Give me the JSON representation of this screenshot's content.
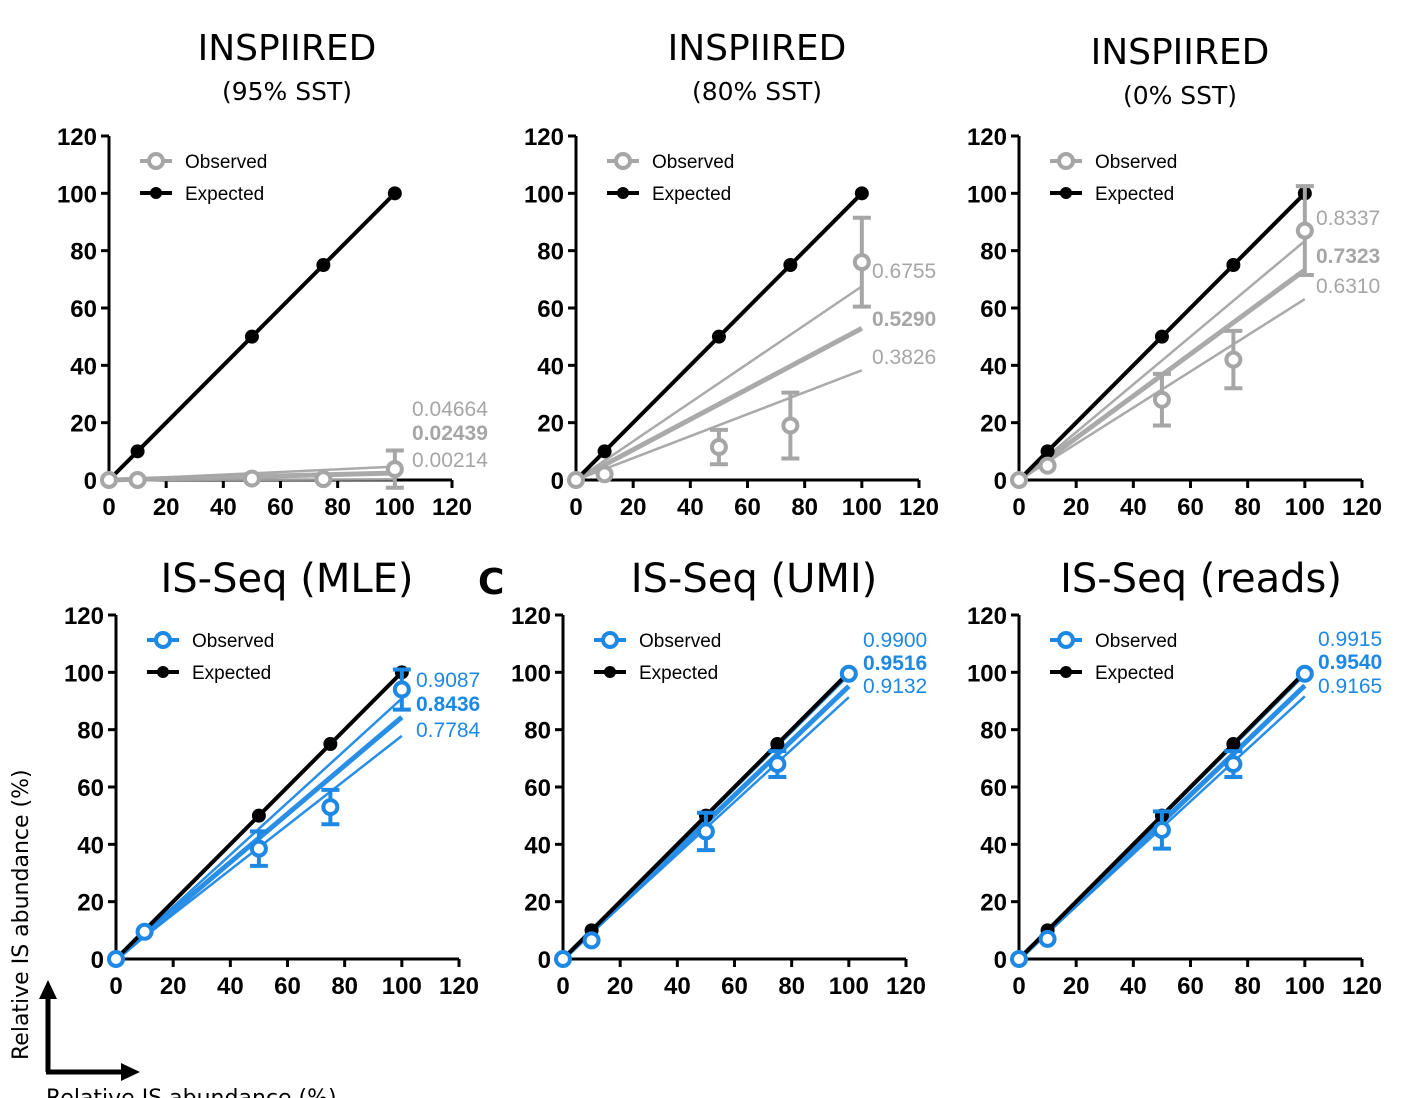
{
  "colors": {
    "expected": "#000000",
    "observed_gray": "#a6a6a6",
    "observed_blue": "#1e88e5"
  },
  "panel_letter": "C",
  "y_axis_caption": "Relative IS abundance (%)",
  "x_axis_caption": "Relative IS abundance (%)",
  "chart_data": [
    {
      "type": "scatter",
      "title": "INSPIIRED",
      "subtitle": "(95% SST)",
      "xlim": [
        0,
        120
      ],
      "ylim": [
        0,
        120
      ],
      "xticks": [
        "0",
        "20",
        "40",
        "60",
        "80",
        "100",
        "120"
      ],
      "yticks": [
        "0",
        "20",
        "40",
        "60",
        "80",
        "100",
        "120"
      ],
      "legend": [
        "Observed",
        "Expected"
      ],
      "observed_color": "#a6a6a6",
      "series": [
        {
          "name": "Expected",
          "x": [
            0,
            10,
            50,
            75,
            100
          ],
          "y": [
            0,
            10,
            50,
            75,
            100
          ]
        },
        {
          "name": "Observed",
          "x": [
            0,
            10,
            50,
            75,
            100
          ],
          "y": [
            0,
            0,
            0.5,
            0.3,
            3.8
          ],
          "err": [
            0,
            0,
            0,
            0,
            6.5
          ]
        }
      ],
      "slopes": [
        "0.04664",
        "0.02439",
        "0.00214"
      ]
    },
    {
      "type": "scatter",
      "title": "INSPIIRED",
      "subtitle": "(80% SST)",
      "xlim": [
        0,
        120
      ],
      "ylim": [
        0,
        120
      ],
      "xticks": [
        "0",
        "20",
        "40",
        "60",
        "80",
        "100",
        "120"
      ],
      "yticks": [
        "0",
        "20",
        "40",
        "60",
        "80",
        "100",
        "120"
      ],
      "legend": [
        "Observed",
        "Expected"
      ],
      "observed_color": "#a6a6a6",
      "series": [
        {
          "name": "Expected",
          "x": [
            0,
            10,
            50,
            75,
            100
          ],
          "y": [
            0,
            10,
            50,
            75,
            100
          ]
        },
        {
          "name": "Observed",
          "x": [
            0,
            10,
            50,
            75,
            100
          ],
          "y": [
            0,
            2,
            11.5,
            19,
            76
          ],
          "err": [
            0,
            0,
            6,
            11.5,
            15.5
          ]
        }
      ],
      "slopes": [
        "0.6755",
        "0.5290",
        "0.3826"
      ]
    },
    {
      "type": "scatter",
      "title": "INSPIIRED",
      "subtitle": "(0% SST)",
      "xlim": [
        0,
        120
      ],
      "ylim": [
        0,
        120
      ],
      "xticks": [
        "0",
        "20",
        "40",
        "60",
        "80",
        "100",
        "120"
      ],
      "yticks": [
        "0",
        "20",
        "40",
        "60",
        "80",
        "100",
        "120"
      ],
      "legend": [
        "Observed",
        "Expected"
      ],
      "observed_color": "#a6a6a6",
      "series": [
        {
          "name": "Expected",
          "x": [
            0,
            10,
            50,
            75,
            100
          ],
          "y": [
            0,
            10,
            50,
            75,
            100
          ]
        },
        {
          "name": "Observed",
          "x": [
            0,
            10,
            50,
            75,
            100
          ],
          "y": [
            0,
            5,
            28,
            42,
            87
          ],
          "err": [
            0,
            0,
            9,
            10,
            15.5
          ]
        }
      ],
      "slopes": [
        "0.8337",
        "0.7323",
        "0.6310"
      ]
    },
    {
      "type": "scatter",
      "title": "IS-Seq (MLE)",
      "subtitle": "",
      "xlim": [
        0,
        120
      ],
      "ylim": [
        0,
        120
      ],
      "xticks": [
        "0",
        "20",
        "40",
        "60",
        "80",
        "100",
        "120"
      ],
      "yticks": [
        "0",
        "20",
        "40",
        "60",
        "80",
        "100",
        "120"
      ],
      "legend": [
        "Observed",
        "Expected"
      ],
      "observed_color": "#1e88e5",
      "series": [
        {
          "name": "Expected",
          "x": [
            0,
            10,
            50,
            75,
            100
          ],
          "y": [
            0,
            10,
            50,
            75,
            100
          ]
        },
        {
          "name": "Observed",
          "x": [
            0,
            10,
            50,
            75,
            100
          ],
          "y": [
            0,
            9.5,
            38.5,
            53,
            94
          ],
          "err": [
            0,
            0,
            6,
            6,
            7
          ]
        }
      ],
      "slopes": [
        "0.9087",
        "0.8436",
        "0.7784"
      ]
    },
    {
      "type": "scatter",
      "title": "IS-Seq (UMI)",
      "subtitle": "",
      "xlim": [
        0,
        120
      ],
      "ylim": [
        0,
        120
      ],
      "xticks": [
        "0",
        "20",
        "40",
        "60",
        "80",
        "100",
        "120"
      ],
      "yticks": [
        "0",
        "20",
        "40",
        "60",
        "80",
        "100",
        "120"
      ],
      "legend": [
        "Observed",
        "Expected"
      ],
      "observed_color": "#1e88e5",
      "series": [
        {
          "name": "Expected",
          "x": [
            0,
            10,
            50,
            75,
            100
          ],
          "y": [
            0,
            10,
            50,
            75,
            100
          ]
        },
        {
          "name": "Observed",
          "x": [
            0,
            10,
            50,
            75,
            100
          ],
          "y": [
            0,
            6.5,
            44.5,
            68,
            99.5
          ],
          "err": [
            0,
            0,
            6.5,
            4.5,
            0
          ]
        }
      ],
      "slopes": [
        "0.9900",
        "0.9516",
        "0.9132"
      ]
    },
    {
      "type": "scatter",
      "title": "IS-Seq (reads)",
      "subtitle": "",
      "xlim": [
        0,
        120
      ],
      "ylim": [
        0,
        120
      ],
      "xticks": [
        "0",
        "20",
        "40",
        "60",
        "80",
        "100",
        "120"
      ],
      "yticks": [
        "0",
        "20",
        "40",
        "60",
        "80",
        "100",
        "120"
      ],
      "legend": [
        "Observed",
        "Expected"
      ],
      "observed_color": "#1e88e5",
      "series": [
        {
          "name": "Expected",
          "x": [
            0,
            10,
            50,
            75,
            100
          ],
          "y": [
            0,
            10,
            50,
            75,
            100
          ]
        },
        {
          "name": "Observed",
          "x": [
            0,
            10,
            50,
            75,
            100
          ],
          "y": [
            0,
            7,
            45,
            68,
            99.5
          ],
          "err": [
            0,
            0,
            6.5,
            4.5,
            0
          ]
        }
      ],
      "slopes": [
        "0.9915",
        "0.9540",
        "0.9165"
      ]
    }
  ]
}
